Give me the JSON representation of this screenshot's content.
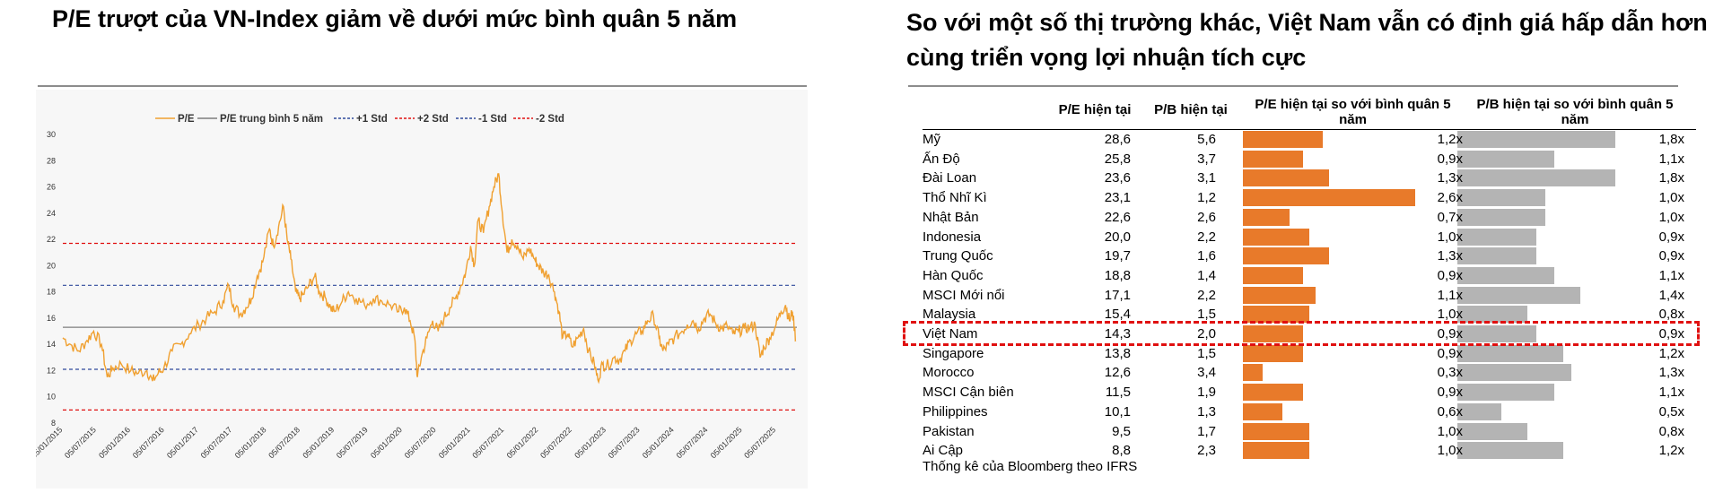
{
  "left_panel": {
    "title": "P/E trượt của VN-Index giảm về dưới mức bình quân 5 năm"
  },
  "right_panel": {
    "title": "So với một số thị trường khác, Việt Nam vẫn có định giá hấp dẫn hơn cùng triển vọng lợi nhuận tích cực",
    "headers": {
      "pe": "P/E hiện tại",
      "pb": "P/B hiện tại",
      "pe_vs_avg": "P/E hiện tại so với bình quân 5 năm",
      "pb_vs_avg": "P/B hiện tại so với bình quân 5 năm"
    },
    "source": "Thống kê của Bloomberg theo IFRS",
    "highlighted_row": "Việt Nam",
    "colors": {
      "pe_bar": "#e87a2a",
      "pb_bar": "#b4b4b4",
      "highlight": "#e01010"
    }
  },
  "chart_data": [
    {
      "type": "line",
      "legend_position": "top",
      "ylim": [
        8,
        30
      ],
      "yticks": [
        "8",
        "10",
        "12",
        "14",
        "16",
        "18",
        "20",
        "22",
        "24",
        "26",
        "28",
        "30"
      ],
      "xticks": [
        "05/01/2015",
        "05/07/2015",
        "05/01/2016",
        "05/07/2016",
        "05/01/2017",
        "05/07/2017",
        "05/01/2018",
        "05/07/2018",
        "05/01/2019",
        "05/07/2019",
        "05/01/2020",
        "05/07/2020",
        "05/01/2021",
        "05/07/2021",
        "05/01/2022",
        "05/07/2022",
        "05/01/2023",
        "05/07/2023",
        "05/01/2024",
        "05/07/2024",
        "05/01/2025",
        "05/07/2025"
      ],
      "series": [
        {
          "name": "P/E",
          "color": "#f0a030",
          "points": [
            [
              "2015-01-05",
              14.5
            ],
            [
              "2015-02-15",
              14.0
            ],
            [
              "2015-04-01",
              13.5
            ],
            [
              "2015-05-15",
              14.3
            ],
            [
              "2015-06-20",
              15.0
            ],
            [
              "2015-08-01",
              14.0
            ],
            [
              "2015-09-01",
              11.5
            ],
            [
              "2015-10-01",
              12.2
            ],
            [
              "2015-11-15",
              12.5
            ],
            [
              "2016-01-05",
              12.0
            ],
            [
              "2016-02-15",
              11.8
            ],
            [
              "2016-04-01",
              12.0
            ],
            [
              "2016-05-01",
              11.2
            ],
            [
              "2016-06-01",
              11.8
            ],
            [
              "2016-07-01",
              12.2
            ],
            [
              "2016-08-15",
              13.5
            ],
            [
              "2016-10-01",
              14.0
            ],
            [
              "2016-11-15",
              14.8
            ],
            [
              "2017-01-05",
              15.5
            ],
            [
              "2017-02-15",
              16.0
            ],
            [
              "2017-04-01",
              16.5
            ],
            [
              "2017-05-15",
              17.3
            ],
            [
              "2017-06-15",
              18.5
            ],
            [
              "2017-07-10",
              17.0
            ],
            [
              "2017-08-15",
              16.3
            ],
            [
              "2017-09-15",
              16.8
            ],
            [
              "2017-10-15",
              17.5
            ],
            [
              "2017-11-15",
              19.2
            ],
            [
              "2017-12-15",
              20.3
            ],
            [
              "2018-01-20",
              22.8
            ],
            [
              "2018-02-10",
              21.5
            ],
            [
              "2018-03-10",
              23.0
            ],
            [
              "2018-04-05",
              24.5
            ],
            [
              "2018-04-25",
              22.0
            ],
            [
              "2018-05-15",
              20.5
            ],
            [
              "2018-06-10",
              18.0
            ],
            [
              "2018-06-30",
              17.5
            ],
            [
              "2018-07-20",
              17.8
            ],
            [
              "2018-08-20",
              18.5
            ],
            [
              "2018-09-20",
              19.2
            ],
            [
              "2018-10-15",
              18.0
            ],
            [
              "2018-11-15",
              17.6
            ],
            [
              "2018-12-15",
              16.8
            ],
            [
              "2019-01-05",
              16.5
            ],
            [
              "2019-02-15",
              17.3
            ],
            [
              "2019-03-20",
              18.0
            ],
            [
              "2019-05-01",
              17.5
            ],
            [
              "2019-06-15",
              17.0
            ],
            [
              "2019-08-01",
              17.5
            ],
            [
              "2019-09-15",
              17.3
            ],
            [
              "2019-11-01",
              17.0
            ],
            [
              "2019-12-15",
              16.5
            ],
            [
              "2020-01-15",
              16.8
            ],
            [
              "2020-02-15",
              15.8
            ],
            [
              "2020-03-10",
              14.5
            ],
            [
              "2020-03-25",
              11.5
            ],
            [
              "2020-04-15",
              13.0
            ],
            [
              "2020-05-15",
              14.5
            ],
            [
              "2020-06-15",
              15.8
            ],
            [
              "2020-07-15",
              15.0
            ],
            [
              "2020-08-15",
              16.0
            ],
            [
              "2020-09-15",
              16.8
            ],
            [
              "2020-10-15",
              17.5
            ],
            [
              "2020-11-15",
              18.5
            ],
            [
              "2020-12-10",
              19.5
            ],
            [
              "2021-01-05",
              21.5
            ],
            [
              "2021-01-25",
              20.0
            ],
            [
              "2021-02-15",
              23.5
            ],
            [
              "2021-03-15",
              22.5
            ],
            [
              "2021-04-15",
              24.5
            ],
            [
              "2021-05-10",
              26.0
            ],
            [
              "2021-06-05",
              27.0
            ],
            [
              "2021-06-25",
              24.0
            ],
            [
              "2021-07-20",
              21.0
            ],
            [
              "2021-08-15",
              22.0
            ],
            [
              "2021-09-15",
              21.5
            ],
            [
              "2021-10-15",
              20.5
            ],
            [
              "2021-11-15",
              21.3
            ],
            [
              "2021-12-15",
              20.5
            ],
            [
              "2022-01-05",
              20.0
            ],
            [
              "2022-02-01",
              19.5
            ],
            [
              "2022-03-01",
              19.3
            ],
            [
              "2022-04-01",
              18.0
            ],
            [
              "2022-04-25",
              16.5
            ],
            [
              "2022-05-15",
              14.5
            ],
            [
              "2022-06-10",
              14.8
            ],
            [
              "2022-07-05",
              13.8
            ],
            [
              "2022-08-05",
              14.5
            ],
            [
              "2022-09-05",
              15.2
            ],
            [
              "2022-10-01",
              13.5
            ],
            [
              "2022-11-01",
              12.5
            ],
            [
              "2022-11-20",
              11.3
            ],
            [
              "2022-12-15",
              12.5
            ],
            [
              "2023-01-05",
              12.3
            ],
            [
              "2023-02-15",
              13.0
            ],
            [
              "2023-03-15",
              12.8
            ],
            [
              "2023-04-15",
              13.5
            ],
            [
              "2023-05-15",
              14.3
            ],
            [
              "2023-06-15",
              14.8
            ],
            [
              "2023-07-15",
              15.0
            ],
            [
              "2023-08-15",
              15.8
            ],
            [
              "2023-09-15",
              16.2
            ],
            [
              "2023-10-15",
              14.5
            ],
            [
              "2023-11-05",
              13.5
            ],
            [
              "2023-12-05",
              14.0
            ],
            [
              "2024-01-05",
              14.5
            ],
            [
              "2024-02-15",
              15.0
            ],
            [
              "2024-03-15",
              15.5
            ],
            [
              "2024-04-15",
              15.8
            ],
            [
              "2024-05-15",
              15.2
            ],
            [
              "2024-06-15",
              16.0
            ],
            [
              "2024-07-15",
              16.3
            ],
            [
              "2024-08-15",
              15.6
            ],
            [
              "2024-09-15",
              15.2
            ],
            [
              "2024-10-15",
              15.4
            ],
            [
              "2024-11-15",
              14.8
            ],
            [
              "2024-12-15",
              15.0
            ],
            [
              "2025-01-15",
              15.2
            ],
            [
              "2025-02-15",
              15.3
            ],
            [
              "2025-03-15",
              15.5
            ],
            [
              "2025-04-10",
              13.0
            ],
            [
              "2025-05-01",
              13.8
            ],
            [
              "2025-06-01",
              14.5
            ],
            [
              "2025-07-05",
              15.5
            ],
            [
              "2025-08-01",
              16.5
            ],
            [
              "2025-08-25",
              17.0
            ],
            [
              "2025-09-15",
              15.8
            ],
            [
              "2025-10-01",
              16.5
            ],
            [
              "2025-10-20",
              14.3
            ]
          ]
        },
        {
          "name": "P/E trung bình 5 năm",
          "color": "#7f7f7f",
          "value": 15.3
        },
        {
          "name": "+1 Std",
          "color": "#2f4a9c",
          "value": 18.5
        },
        {
          "name": "+2 Std",
          "color": "#e01010",
          "value": 21.7
        },
        {
          "name": "-1 Std",
          "color": "#2f4a9c",
          "value": 12.1
        },
        {
          "name": "-2 Std",
          "color": "#e01010",
          "value": 9.0
        }
      ]
    },
    {
      "type": "table",
      "rows": [
        {
          "country": "Mỹ",
          "pe": "28,6",
          "pb": "5,6",
          "pe_vs_avg": "1,2x",
          "pb_vs_avg": "1,8x",
          "pe_vs_avg_value": 1.2,
          "pb_vs_avg_value": 1.8
        },
        {
          "country": "Ấn Độ",
          "pe": "25,8",
          "pb": "3,7",
          "pe_vs_avg": "0,9x",
          "pb_vs_avg": "1,1x",
          "pe_vs_avg_value": 0.9,
          "pb_vs_avg_value": 1.1
        },
        {
          "country": "Đài Loan",
          "pe": "23,6",
          "pb": "3,1",
          "pe_vs_avg": "1,3x",
          "pb_vs_avg": "1,8x",
          "pe_vs_avg_value": 1.3,
          "pb_vs_avg_value": 1.8
        },
        {
          "country": "Thổ Nhĩ Kì",
          "pe": "23,1",
          "pb": "1,2",
          "pe_vs_avg": "2,6x",
          "pb_vs_avg": "1,0x",
          "pe_vs_avg_value": 2.6,
          "pb_vs_avg_value": 1.0
        },
        {
          "country": "Nhật Bản",
          "pe": "22,6",
          "pb": "2,6",
          "pe_vs_avg": "0,7x",
          "pb_vs_avg": "1,0x",
          "pe_vs_avg_value": 0.7,
          "pb_vs_avg_value": 1.0
        },
        {
          "country": "Indonesia",
          "pe": "20,0",
          "pb": "2,2",
          "pe_vs_avg": "1,0x",
          "pb_vs_avg": "0,9x",
          "pe_vs_avg_value": 1.0,
          "pb_vs_avg_value": 0.9
        },
        {
          "country": "Trung Quốc",
          "pe": "19,7",
          "pb": "1,6",
          "pe_vs_avg": "1,3x",
          "pb_vs_avg": "0,9x",
          "pe_vs_avg_value": 1.3,
          "pb_vs_avg_value": 0.9
        },
        {
          "country": "Hàn Quốc",
          "pe": "18,8",
          "pb": "1,4",
          "pe_vs_avg": "0,9x",
          "pb_vs_avg": "1,1x",
          "pe_vs_avg_value": 0.9,
          "pb_vs_avg_value": 1.1
        },
        {
          "country": "MSCI Mới nổi",
          "pe": "17,1",
          "pb": "2,2",
          "pe_vs_avg": "1,1x",
          "pb_vs_avg": "1,4x",
          "pe_vs_avg_value": 1.1,
          "pb_vs_avg_value": 1.4
        },
        {
          "country": "Malaysia",
          "pe": "15,4",
          "pb": "1,5",
          "pe_vs_avg": "1,0x",
          "pb_vs_avg": "0,8x",
          "pe_vs_avg_value": 1.0,
          "pb_vs_avg_value": 0.8
        },
        {
          "country": "Việt Nam",
          "pe": "14,3",
          "pb": "2,0",
          "pe_vs_avg": "0,9x",
          "pb_vs_avg": "0,9x",
          "pe_vs_avg_value": 0.9,
          "pb_vs_avg_value": 0.9
        },
        {
          "country": "Singapore",
          "pe": "13,8",
          "pb": "1,5",
          "pe_vs_avg": "0,9x",
          "pb_vs_avg": "1,2x",
          "pe_vs_avg_value": 0.9,
          "pb_vs_avg_value": 1.2
        },
        {
          "country": "Morocco",
          "pe": "12,6",
          "pb": "3,4",
          "pe_vs_avg": "0,3x",
          "pb_vs_avg": "1,3x",
          "pe_vs_avg_value": 0.3,
          "pb_vs_avg_value": 1.3
        },
        {
          "country": "MSCI Cận biên",
          "pe": "11,5",
          "pb": "1,9",
          "pe_vs_avg": "0,9x",
          "pb_vs_avg": "1,1x",
          "pe_vs_avg_value": 0.9,
          "pb_vs_avg_value": 1.1
        },
        {
          "country": "Philippines",
          "pe": "10,1",
          "pb": "1,3",
          "pe_vs_avg": "0,6x",
          "pb_vs_avg": "0,5x",
          "pe_vs_avg_value": 0.6,
          "pb_vs_avg_value": 0.5
        },
        {
          "country": "Pakistan",
          "pe": "9,5",
          "pb": "1,7",
          "pe_vs_avg": "1,0x",
          "pb_vs_avg": "0,8x",
          "pe_vs_avg_value": 1.0,
          "pb_vs_avg_value": 0.8
        },
        {
          "country": "Ai Cập",
          "pe": "8,8",
          "pb": "2,3",
          "pe_vs_avg": "1,0x",
          "pb_vs_avg": "1,2x",
          "pe_vs_avg_value": 1.0,
          "pb_vs_avg_value": 1.2
        }
      ]
    }
  ]
}
